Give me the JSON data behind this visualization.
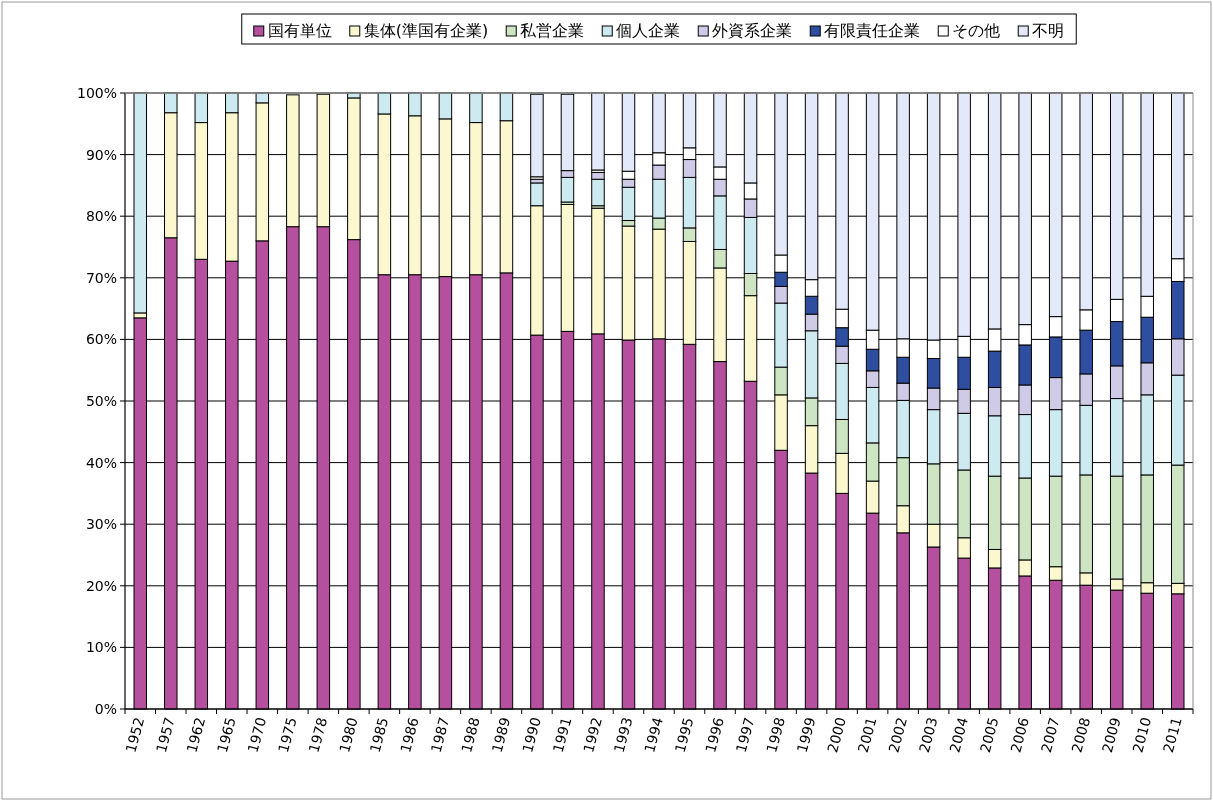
{
  "chart_data": {
    "type": "bar",
    "stacked": true,
    "grid": "y",
    "legend": "top",
    "categories": [
      "1952",
      "1957",
      "1962",
      "1965",
      "1970",
      "1975",
      "1978",
      "1980",
      "1985",
      "1986",
      "1987",
      "1988",
      "1989",
      "1990",
      "1991",
      "1992",
      "1993",
      "1994",
      "1995",
      "1996",
      "1997",
      "1998",
      "1999",
      "2000",
      "2001",
      "2002",
      "2003",
      "2004",
      "2005",
      "2006",
      "2007",
      "2008",
      "2009",
      "2010",
      "2011"
    ],
    "ylim": [
      0,
      100
    ],
    "yticks": [
      {
        "value": 0,
        "label": "0%"
      },
      {
        "value": 10,
        "label": "10%"
      },
      {
        "value": 20,
        "label": "20%"
      },
      {
        "value": 30,
        "label": "30%"
      },
      {
        "value": 40,
        "label": "40%"
      },
      {
        "value": 50,
        "label": "50%"
      },
      {
        "value": 60,
        "label": "60%"
      },
      {
        "value": 70,
        "label": "70%"
      },
      {
        "value": 80,
        "label": "80%"
      },
      {
        "value": 90,
        "label": "90%"
      },
      {
        "value": 100,
        "label": "100%"
      }
    ],
    "series": [
      {
        "name": "国有単位",
        "color": "#b4509e",
        "values": [
          63.5,
          76.5,
          73.0,
          72.7,
          76.0,
          78.3,
          78.3,
          76.2,
          70.5,
          70.5,
          70.2,
          70.5,
          70.8,
          60.7,
          61.3,
          60.9,
          59.9,
          60.1,
          59.2,
          56.4,
          53.2,
          42.0,
          38.3,
          35.0,
          31.8,
          28.6,
          26.3,
          24.5,
          22.9,
          21.6,
          20.9,
          20.1,
          19.3,
          18.8,
          18.7
        ]
      },
      {
        "name": "集体(準国有企業)",
        "color": "#fbf7cf",
        "values": [
          0.8,
          20.3,
          22.2,
          24.1,
          22.4,
          21.4,
          21.5,
          23.0,
          26.1,
          25.8,
          25.6,
          24.7,
          24.7,
          21.0,
          20.6,
          20.4,
          18.5,
          17.8,
          16.7,
          15.2,
          13.9,
          9.0,
          7.7,
          6.5,
          5.2,
          4.4,
          3.7,
          3.3,
          3.0,
          2.6,
          2.2,
          2.0,
          1.8,
          1.7,
          1.7
        ]
      },
      {
        "name": "私営企業",
        "color": "#cde5c3",
        "values": [
          null,
          null,
          null,
          null,
          null,
          null,
          null,
          null,
          null,
          null,
          null,
          null,
          null,
          null,
          0.4,
          0.4,
          0.9,
          1.8,
          2.2,
          3.0,
          3.6,
          4.5,
          4.5,
          5.5,
          6.2,
          7.8,
          9.8,
          11.0,
          11.9,
          13.3,
          14.7,
          15.9,
          16.7,
          17.5,
          19.2
        ]
      },
      {
        "name": "個人企業",
        "color": "#cdeaf0",
        "values": [
          35.7,
          3.2,
          4.8,
          3.2,
          1.6,
          null,
          null,
          0.8,
          3.4,
          3.7,
          4.2,
          4.8,
          4.5,
          3.7,
          4.0,
          4.3,
          5.4,
          6.3,
          8.2,
          8.7,
          9.1,
          10.4,
          10.9,
          9.1,
          9.0,
          9.3,
          8.8,
          9.2,
          9.8,
          10.3,
          10.8,
          11.3,
          12.6,
          13.0,
          14.6
        ]
      },
      {
        "name": "外資系企業",
        "color": "#cfcae6",
        "values": [
          null,
          null,
          null,
          null,
          null,
          null,
          null,
          null,
          null,
          null,
          null,
          null,
          null,
          0.6,
          1.1,
          1.1,
          1.3,
          2.3,
          2.9,
          2.7,
          3.0,
          2.7,
          2.7,
          2.8,
          2.7,
          2.8,
          3.5,
          3.9,
          4.6,
          4.8,
          5.2,
          5.1,
          5.3,
          5.2,
          5.9
        ]
      },
      {
        "name": "有限責任企業",
        "color": "#2f4ea0",
        "values": [
          null,
          null,
          null,
          null,
          null,
          null,
          null,
          null,
          null,
          null,
          null,
          null,
          null,
          null,
          null,
          null,
          null,
          null,
          null,
          null,
          null,
          2.3,
          2.9,
          3.0,
          3.5,
          4.2,
          4.8,
          5.2,
          5.9,
          6.5,
          6.6,
          7.1,
          7.2,
          7.4,
          9.3
        ]
      },
      {
        "name": "その他",
        "color": "#ffffff",
        "values": [
          null,
          null,
          null,
          null,
          null,
          null,
          null,
          null,
          null,
          null,
          null,
          null,
          null,
          0.4,
          null,
          0.4,
          1.3,
          2.0,
          1.9,
          2.0,
          2.6,
          2.8,
          2.7,
          3.0,
          3.1,
          3.0,
          3.0,
          3.4,
          3.6,
          3.3,
          3.3,
          3.3,
          3.6,
          3.4,
          3.7
        ]
      },
      {
        "name": "不明",
        "color": "#e3e9f8",
        "values": [
          null,
          null,
          null,
          null,
          null,
          null,
          null,
          null,
          null,
          null,
          null,
          null,
          null,
          13.4,
          12.4,
          12.5,
          12.7,
          9.7,
          8.9,
          12.0,
          14.6,
          26.3,
          30.3,
          35.1,
          38.5,
          39.9,
          40.1,
          39.5,
          38.3,
          37.6,
          36.3,
          35.2,
          33.5,
          33.0,
          26.9
        ]
      }
    ]
  }
}
